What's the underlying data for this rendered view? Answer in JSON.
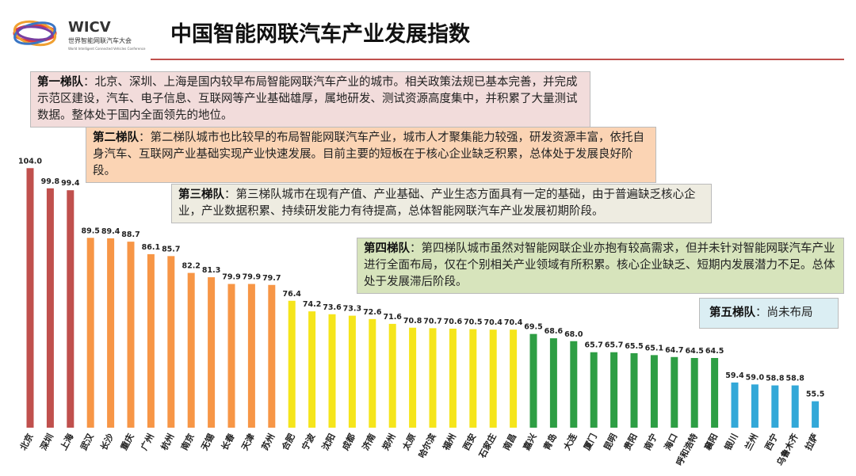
{
  "logo": {
    "title": "WICV",
    "subtitle": "世界智能网联汽车大会",
    "caption": "World Intelligent Connected Vehicles Conference"
  },
  "chart_data": {
    "type": "bar",
    "title": "中国智能网联汽车产业发展指数",
    "categories": [
      "北京",
      "深圳",
      "上海",
      "武汉",
      "长沙",
      "重庆",
      "广州",
      "杭州",
      "南京",
      "无锡",
      "长春",
      "天津",
      "苏州",
      "合肥",
      "宁波",
      "沈阳",
      "成都",
      "济南",
      "郑州",
      "太原",
      "哈尔滨",
      "福州",
      "西安",
      "石家庄",
      "南昌",
      "嘉兴",
      "青岛",
      "大连",
      "厦门",
      "昆明",
      "贵阳",
      "南宁",
      "海口",
      "呼和浩特",
      "襄阳",
      "银川",
      "兰州",
      "西宁",
      "乌鲁木齐",
      "拉萨"
    ],
    "values": [
      104,
      99.8,
      99.4,
      89.5,
      89.4,
      88.7,
      86.1,
      85.7,
      82.2,
      81.3,
      79.9,
      79.9,
      79.7,
      76.4,
      74.2,
      73.6,
      73.3,
      72.6,
      71.6,
      70.8,
      70.7,
      70.6,
      70.5,
      70.4,
      70.4,
      69.5,
      68.6,
      68,
      65.7,
      65.7,
      65.5,
      65.1,
      64.7,
      64.5,
      64.5,
      59.4,
      59,
      58.8,
      58.8,
      55.5
    ],
    "value_labels": [
      "104.0",
      "99.8",
      "99.4",
      "89.5",
      "89.4",
      "88.7",
      "86.1",
      "85.7",
      "82.2",
      "81.3",
      "79.9",
      "79.9",
      "79.7",
      "76.4",
      "74.2",
      "73.6",
      "73.3",
      "72.6",
      "71.6",
      "70.8",
      "70.7",
      "70.6",
      "70.5",
      "70.4",
      "70.4",
      "69.5",
      "68.6",
      "68.0",
      "65.7",
      "65.7",
      "65.5",
      "65.1",
      "64.7",
      "64.5",
      "64.5",
      "59.4",
      "59.0",
      "58.8",
      "58.8",
      "55.5"
    ],
    "colors": [
      "#c0504d",
      "#c0504d",
      "#c0504d",
      "#f79646",
      "#f79646",
      "#f79646",
      "#f79646",
      "#f79646",
      "#f79646",
      "#f79646",
      "#f79646",
      "#f79646",
      "#f79646",
      "#f5e51b",
      "#f5e51b",
      "#f5e51b",
      "#f5e51b",
      "#f5e51b",
      "#f5e51b",
      "#f5e51b",
      "#f5e51b",
      "#f5e51b",
      "#f5e51b",
      "#f5e51b",
      "#f5e51b",
      "#2e9e44",
      "#2e9e44",
      "#2e9e44",
      "#2e9e44",
      "#2e9e44",
      "#2e9e44",
      "#2e9e44",
      "#2e9e44",
      "#2e9e44",
      "#2e9e44",
      "#33a8d8",
      "#33a8d8",
      "#33a8d8",
      "#33a8d8",
      "#33a8d8"
    ],
    "ylim": [
      50,
      108
    ],
    "annotations": [
      {
        "label": "第一梯队",
        "text": "：北京、深圳、上海是国内较早布局智能网联汽车产业的城市。相关政策法规已基本完善，并完成示范区建设，汽车、电子信息、互联网等产业基础雄厚，属地研发、测试资源高度集中，并积累了大量测试数据。整体处于国内全面领先的地位。",
        "color": "#f2dcdb"
      },
      {
        "label": "第二梯队",
        "text": "：第二梯队城市也比较早的布局智能网联汽车产业，城市人才聚集能力较强，研发资源丰富，依托自身汽车、互联网产业基础实现产业快速发展。目前主要的短板在于核心企业缺乏积累，总体处于发展良好阶段。",
        "color": "#fbd4b4"
      },
      {
        "label": "第三梯队",
        "text": "：第三梯队城市在现有产值、产业基础、产业生态方面具有一定的基础，由于普遍缺乏核心企业，产业数据积累、持续研发能力有待提高，总体智能网联汽车产业发展初期阶段。",
        "color": "#eeece1"
      },
      {
        "label": "第四梯队",
        "text": "：第四梯队城市虽然对智能网联企业亦抱有较高需求，但并未针对智能网联汽车产业进行全面布局，仅在个别相关产业领域有所积累。核心企业缺乏、短期内发展潜力不足。总体处于发展滞后阶段。",
        "color": "#d7e4bc"
      },
      {
        "label": "第五梯队",
        "text": "：尚未布局",
        "color": "#dbeef3"
      }
    ]
  }
}
